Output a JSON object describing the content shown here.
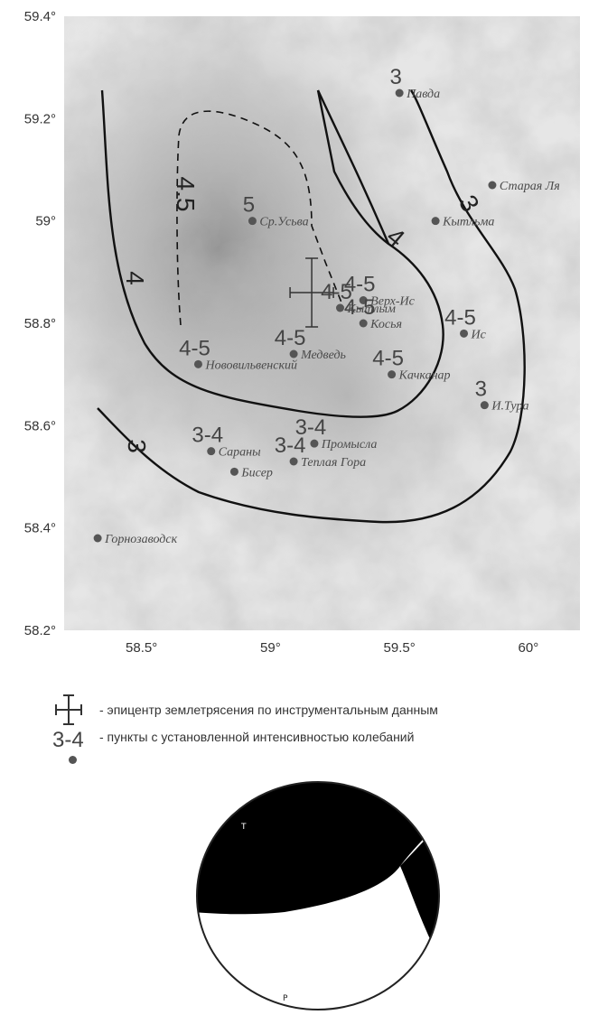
{
  "axes": {
    "y_ticks": [
      {
        "value": 58.2,
        "label": "58.2°"
      },
      {
        "value": 58.4,
        "label": "58.4°"
      },
      {
        "value": 58.6,
        "label": "58.6°"
      },
      {
        "value": 58.8,
        "label": "58.8°"
      },
      {
        "value": 59.0,
        "label": "59°"
      },
      {
        "value": 59.2,
        "label": "59.2°"
      },
      {
        "value": 59.4,
        "label": "59.4°"
      }
    ],
    "x_ticks": [
      {
        "value": 58.5,
        "label": "58.5°"
      },
      {
        "value": 59.0,
        "label": "59°"
      },
      {
        "value": 59.5,
        "label": "59.5°"
      },
      {
        "value": 60.0,
        "label": "60°"
      }
    ],
    "lon_range": [
      58.2,
      60.2
    ],
    "lat_range": [
      58.2,
      59.4
    ]
  },
  "places": [
    {
      "name": "Павда",
      "lon": 59.5,
      "lat": 59.25,
      "intensity": "3"
    },
    {
      "name": "Старая Ля",
      "lon": 59.86,
      "lat": 59.07,
      "intensity": ""
    },
    {
      "name": "Ср.Усьва",
      "lon": 58.93,
      "lat": 59.0,
      "intensity": "5"
    },
    {
      "name": "Кытльма",
      "lon": 59.64,
      "lat": 59.0,
      "intensity": ""
    },
    {
      "name": "Верх-Ис",
      "lon": 59.36,
      "lat": 58.845,
      "intensity": "4-5"
    },
    {
      "name": "Кытлым",
      "lon": 59.27,
      "lat": 58.83,
      "intensity": "4-5"
    },
    {
      "name": "Косья",
      "lon": 59.36,
      "lat": 58.8,
      "intensity": "4-5"
    },
    {
      "name": "Ис",
      "lon": 59.75,
      "lat": 58.78,
      "intensity": "4-5"
    },
    {
      "name": "Медведь",
      "lon": 59.09,
      "lat": 58.74,
      "intensity": "4-5"
    },
    {
      "name": "Нововильвенский",
      "lon": 58.72,
      "lat": 58.72,
      "intensity": "4-5"
    },
    {
      "name": "Качканар",
      "lon": 59.47,
      "lat": 58.7,
      "intensity": "4-5"
    },
    {
      "name": "И.Тура",
      "lon": 59.83,
      "lat": 58.64,
      "intensity": "3"
    },
    {
      "name": "Промысла",
      "lon": 59.17,
      "lat": 58.565,
      "intensity": "3-4"
    },
    {
      "name": "Сараны",
      "lon": 58.77,
      "lat": 58.55,
      "intensity": "3-4"
    },
    {
      "name": "Теплая Гора",
      "lon": 59.09,
      "lat": 58.53,
      "intensity": "3-4"
    },
    {
      "name": "Бисер",
      "lon": 58.86,
      "lat": 58.51,
      "intensity": ""
    },
    {
      "name": "Горнозаводск",
      "lon": 58.33,
      "lat": 58.38,
      "intensity": ""
    }
  ],
  "isoseismals": [
    {
      "label": "4.5",
      "dashed": true
    },
    {
      "label": "4",
      "dashed": false
    },
    {
      "label": "4",
      "dashed": false
    },
    {
      "label": "3",
      "dashed": false
    },
    {
      "label": "3",
      "dashed": false
    }
  ],
  "epicenter": {
    "lon": 59.16,
    "lat": 58.86
  },
  "legend": {
    "epicenter_text": "- эпицентр землетрясения по инструментальным данным",
    "intensity_symbol": "3-4",
    "intensity_text": "- пункты с установленной интенсивностью колебаний"
  },
  "focal": {
    "t_label": "T",
    "p_label": "P"
  },
  "colors": {
    "background_light": "#e9e9e9",
    "background_dark": "#8a8a8a",
    "isoline": "#111111",
    "point": "#555555"
  }
}
